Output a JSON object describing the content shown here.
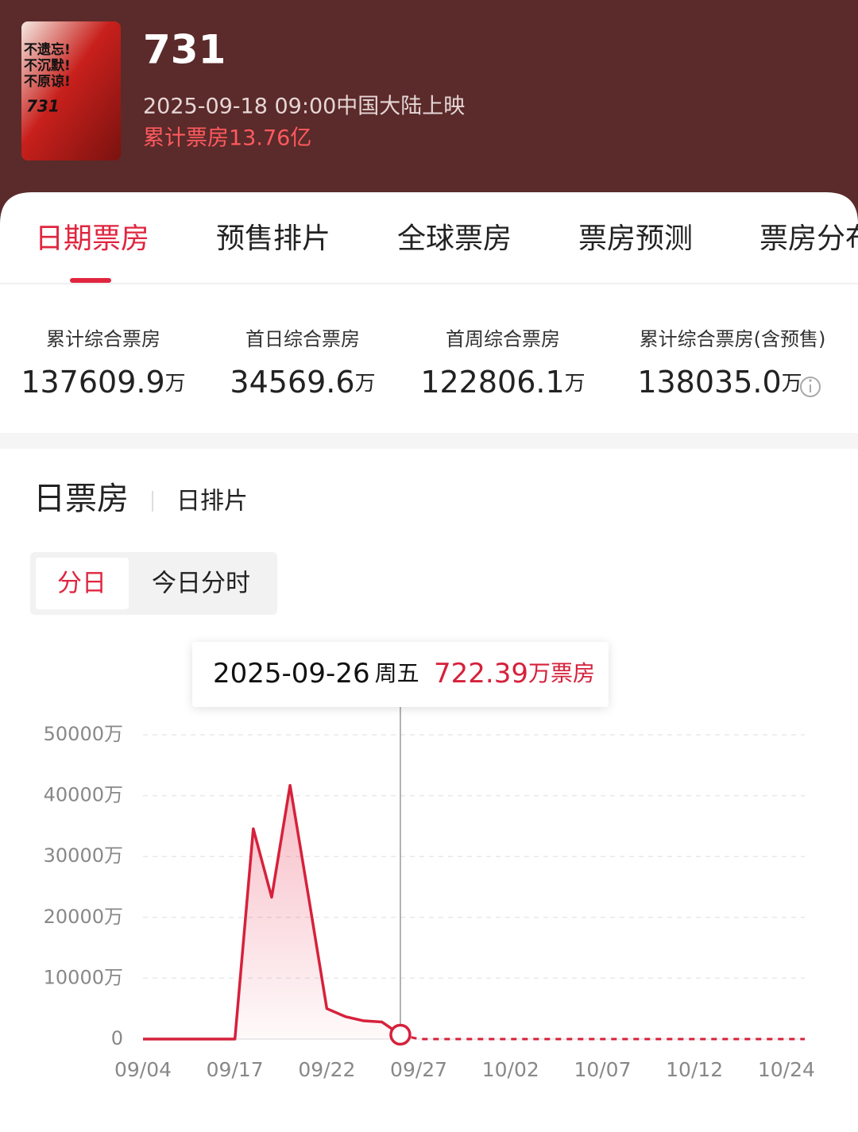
{
  "header": {
    "poster": {
      "lines": [
        "不遗忘!",
        "不沉默!",
        "不原谅!"
      ],
      "title": "731"
    },
    "title": "731",
    "release": "2025-09-18 09:00中国大陆上映",
    "total": "累计票房13.76亿"
  },
  "tabs": [
    "日期票房",
    "预售排片",
    "全球票房",
    "票房预测",
    "票房分布"
  ],
  "active_tab": 0,
  "stats": [
    {
      "label": "累计综合票房",
      "value": "137609.9",
      "unit": "万"
    },
    {
      "label": "首日综合票房",
      "value": "34569.6",
      "unit": "万"
    },
    {
      "label": "首周综合票房",
      "value": "122806.1",
      "unit": "万"
    },
    {
      "label": "累计综合票房(含预售)",
      "value": "138035.0",
      "unit": "万"
    }
  ],
  "section": {
    "title": "日票房",
    "alt": "日排片"
  },
  "toggle": {
    "options": [
      "分日",
      "今日分时"
    ],
    "active": 0
  },
  "chart_data": {
    "type": "line",
    "categories": [
      "09/04",
      null,
      null,
      null,
      null,
      "09/17",
      null,
      null,
      null,
      null,
      "09/22",
      null,
      null,
      null,
      null,
      "09/27",
      null,
      null,
      null,
      null,
      "10/02",
      null,
      null,
      null,
      null,
      "10/07",
      null,
      null,
      null,
      null,
      "10/12",
      null,
      null,
      null,
      null,
      "10/24",
      null
    ],
    "series": [
      {
        "color": "#d6213b",
        "style": "solid",
        "values": [
          0,
          0,
          0,
          0,
          0,
          0,
          34569.6,
          23300,
          41700,
          23500,
          5000,
          3700,
          3000,
          2800,
          722.39,
          null,
          null,
          null,
          null,
          null,
          null,
          null,
          null,
          null,
          null,
          null,
          null,
          null,
          null,
          null,
          null,
          null,
          null,
          null,
          null,
          null,
          null
        ]
      },
      {
        "color": "#d6213b",
        "style": "dashed",
        "values": [
          null,
          null,
          null,
          null,
          null,
          null,
          null,
          null,
          null,
          null,
          null,
          null,
          null,
          null,
          722.39,
          0,
          0,
          0,
          0,
          0,
          0,
          0,
          0,
          0,
          0,
          0,
          0,
          0,
          0,
          0,
          0,
          0,
          0,
          0,
          0,
          0,
          0
        ]
      }
    ],
    "ylim": [
      0,
      50000
    ],
    "yticks": [
      0,
      {
        "value": 10000,
        "label": "10000万"
      },
      {
        "value": 20000,
        "label": "20000万"
      },
      {
        "value": 30000,
        "label": "30000万"
      },
      {
        "value": 40000,
        "label": "40000万"
      },
      {
        "value": 50000,
        "label": "50000万"
      }
    ],
    "grid": true,
    "tooltip": {
      "index": 14,
      "date": "2025-09-26",
      "weekday": "周五",
      "unit": "万票房"
    }
  }
}
